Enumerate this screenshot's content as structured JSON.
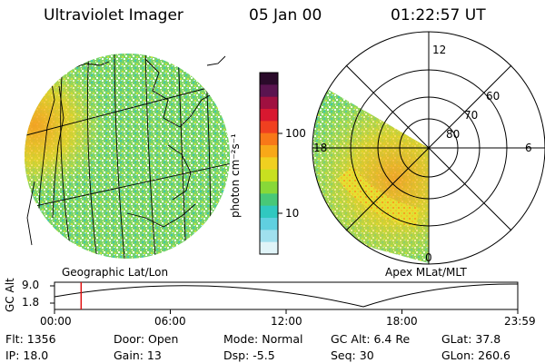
{
  "header": {
    "instrument": "Ultraviolet Imager",
    "date": "05 Jan 00",
    "time": "01:22:57 UT"
  },
  "colorbar": {
    "unit_label": "photon cm⁻²s⁻¹",
    "ticks": [
      "100",
      "10"
    ],
    "colors": [
      "#2a0a2a",
      "#5a1450",
      "#a01040",
      "#d81830",
      "#f04020",
      "#f87818",
      "#f8a818",
      "#f0d020",
      "#c8e020",
      "#88d838",
      "#48c878",
      "#30c8c0",
      "#60d0e0",
      "#a0e0ee",
      "#e0f4f8"
    ]
  },
  "geographic_panel": {
    "label": "Geographic Lat/Lon"
  },
  "polar_panel": {
    "label": "Apex MLat/MLT",
    "mlt_labels": [
      "12",
      "18",
      "6",
      "0"
    ],
    "lat_labels": [
      "60",
      "70",
      "80"
    ]
  },
  "altitude_plot": {
    "ylabel": "GC Alt",
    "y_ticks": [
      "9.0",
      "1.8"
    ],
    "x_ticks": [
      "00:00",
      "06:00",
      "12:00",
      "18:00",
      "23:59"
    ],
    "current_time_hours": 1.38
  },
  "info": {
    "flt": "Flt: 1356",
    "ip": "IP: 18.0",
    "door": "Door: Open",
    "gain": "Gain: 13",
    "mode": "Mode: Normal",
    "dsp": "Dsp:   -5.5",
    "gc_alt": "GC Alt: 6.4 Re",
    "seq": "Seq: 30",
    "glat": "GLat:  37.8",
    "glon": "GLon: 260.6"
  }
}
